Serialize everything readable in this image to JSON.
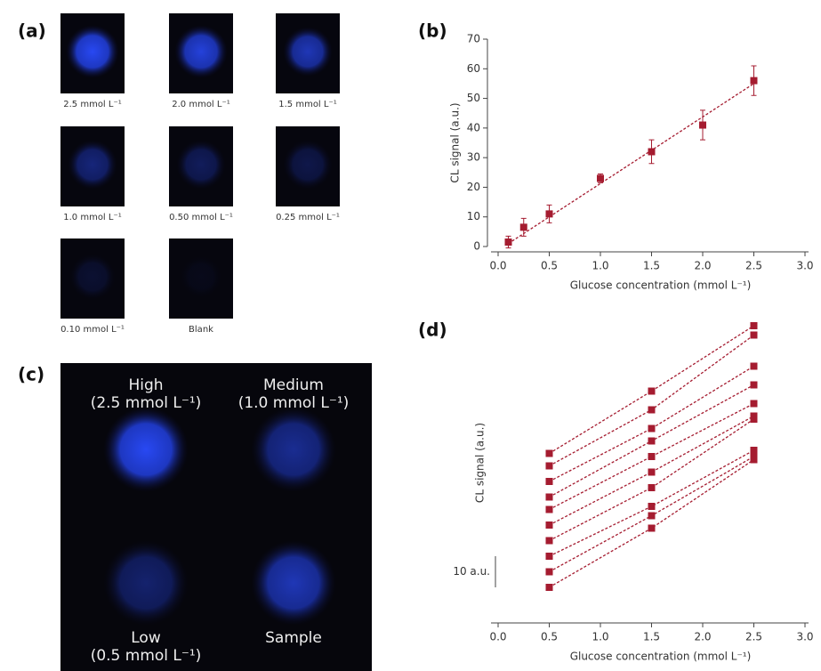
{
  "panel_labels": [
    "(a)",
    "(b)",
    "(c)",
    "(d)"
  ],
  "image_grid": {
    "labels": [
      "2.5 mmol L⁻¹",
      "2.0 mmol L⁻¹",
      "1.5 mmol L⁻¹",
      "1.0 mmol L⁻¹",
      "0.50 mmol L⁻¹",
      "0.25 mmol L⁻¹",
      "0.10 mmol L⁻¹",
      "Blank"
    ]
  },
  "sample_image": {
    "labels": [
      [
        "High",
        "(2.5 mmol L⁻¹)"
      ],
      [
        "Medium",
        "(1.0 mmol L⁻¹)"
      ],
      [
        "Low",
        "(0.5 mmol L⁻¹)"
      ],
      [
        "Sample"
      ]
    ]
  },
  "chart_data": [
    {
      "type": "scatter",
      "x_label": "Glucose concentration (mmol L⁻¹)",
      "y_label": "CL signal (a.u.)",
      "x": [
        0.1,
        0.25,
        0.5,
        1.0,
        1.5,
        2.0,
        2.5
      ],
      "values": [
        1.5,
        6.5,
        11,
        23,
        32,
        41,
        56
      ],
      "errors": [
        2,
        3,
        3,
        1.5,
        4,
        5,
        5
      ],
      "color": "#a51c30",
      "fit": {
        "x": [
          0.1,
          2.5
        ],
        "y": [
          1,
          55
        ]
      },
      "xlim": [
        0,
        3
      ],
      "xticks": [
        {
          "value": 0,
          "label": "0.0"
        },
        0.5,
        {
          "value": 1,
          "label": "1.0"
        },
        1.5,
        {
          "value": 2,
          "label": "2.0"
        },
        2.5,
        {
          "value": 3,
          "label": "3.0"
        }
      ],
      "ylim": [
        0,
        70
      ],
      "yticks": [
        0,
        10,
        20,
        30,
        40,
        50,
        60,
        70
      ]
    },
    {
      "type": "line",
      "x_label": "Glucose concentration (mmol L⁻¹)",
      "y_label": "CL signal (a.u.)",
      "x": [
        0.5,
        1.5,
        2.5
      ],
      "series": [
        {
          "color": "#a51c30",
          "values": [
            0,
            19,
            41
          ]
        },
        {
          "color": "#a51c30",
          "values": [
            5,
            23,
            42
          ]
        },
        {
          "color": "#a51c30",
          "values": [
            10,
            26,
            44
          ]
        },
        {
          "color": "#a51c30",
          "values": [
            15,
            32,
            54
          ]
        },
        {
          "color": "#a51c30",
          "values": [
            20,
            37,
            55
          ]
        },
        {
          "color": "#a51c30",
          "values": [
            25,
            42,
            59
          ]
        },
        {
          "color": "#a51c30",
          "values": [
            29,
            47,
            65
          ]
        },
        {
          "color": "#a51c30",
          "values": [
            34,
            51,
            71
          ]
        },
        {
          "color": "#a51c30",
          "values": [
            39,
            57,
            81
          ]
        },
        {
          "color": "#a51c30",
          "values": [
            43,
            63,
            84
          ]
        }
      ],
      "scale_bar": {
        "value": 10,
        "label": "10 a.u."
      },
      "xlim": [
        0,
        3
      ],
      "xticks": [
        {
          "value": 0,
          "label": "0.0"
        },
        0.5,
        {
          "value": 1,
          "label": "1.0"
        },
        1.5,
        {
          "value": 2,
          "label": "2.0"
        },
        2.5,
        {
          "value": 3,
          "label": "3.0"
        }
      ],
      "ylim": [
        -10,
        90
      ]
    }
  ]
}
